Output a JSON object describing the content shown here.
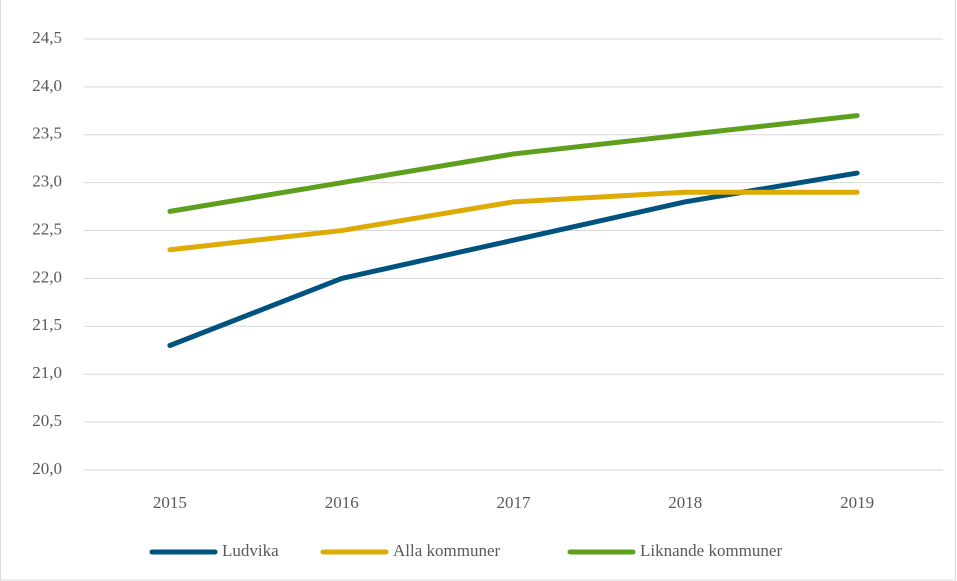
{
  "chart_data": {
    "type": "line",
    "categories": [
      "2015",
      "2016",
      "2017",
      "2018",
      "2019"
    ],
    "series": [
      {
        "name": "Ludvika",
        "color": "#00527f",
        "values": [
          21.3,
          22.0,
          22.4,
          22.8,
          23.1
        ]
      },
      {
        "name": "Alla kommuner",
        "color": "#deab05",
        "values": [
          22.3,
          22.5,
          22.8,
          22.9,
          22.9
        ]
      },
      {
        "name": "Liknande kommuner",
        "color": "#5ea01e",
        "values": [
          22.7,
          23.0,
          23.3,
          23.5,
          23.7
        ]
      }
    ],
    "ylim": [
      20.0,
      24.5
    ],
    "yticks": [
      {
        "value": 20.0,
        "label": "20,0"
      },
      {
        "value": 20.5,
        "label": "20,5"
      },
      {
        "value": 21.0,
        "label": "21,0"
      },
      {
        "value": 21.5,
        "label": "21,5"
      },
      {
        "value": 22.0,
        "label": "22,0"
      },
      {
        "value": 22.5,
        "label": "22,5"
      },
      {
        "value": 23.0,
        "label": "23,0"
      },
      {
        "value": 23.5,
        "label": "23,5"
      },
      {
        "value": 24.0,
        "label": "24,0"
      },
      {
        "value": 24.5,
        "label": "24,5"
      }
    ],
    "grid": true,
    "legend": "bottom"
  }
}
